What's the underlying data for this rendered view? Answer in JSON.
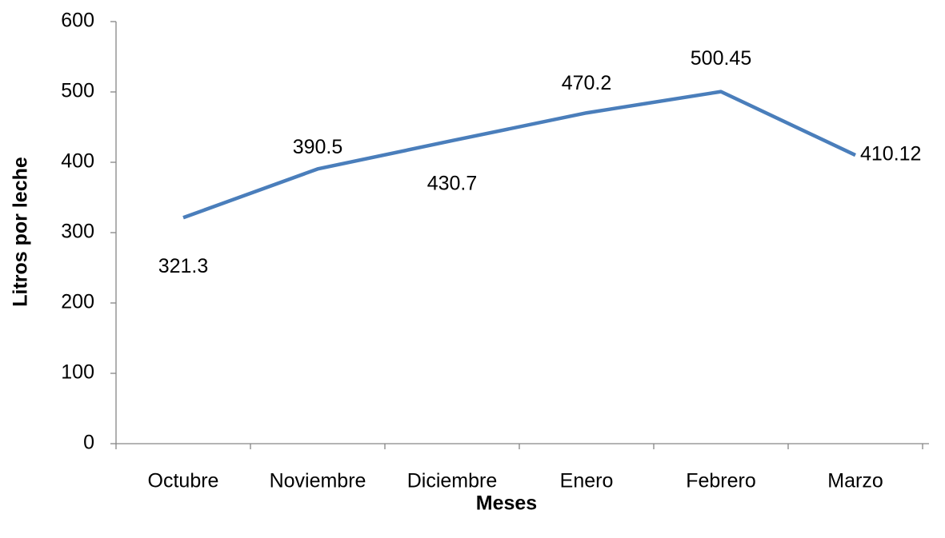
{
  "chart_data": {
    "type": "line",
    "categories": [
      "Octubre",
      "Noviembre",
      "Diciembre",
      "Enero",
      "Febrero",
      "Marzo"
    ],
    "series": [
      {
        "name": "Litros por leche",
        "color": "#4a7ebb",
        "values": [
          321.3,
          390.5,
          430.7,
          470.2,
          500.45,
          410.12
        ]
      }
    ],
    "x_label": "Meses",
    "y_label": "Litros por leche",
    "ylim": [
      0,
      600
    ],
    "yticks": [
      0,
      100,
      200,
      300,
      400,
      500,
      600
    ],
    "grid": false
  }
}
